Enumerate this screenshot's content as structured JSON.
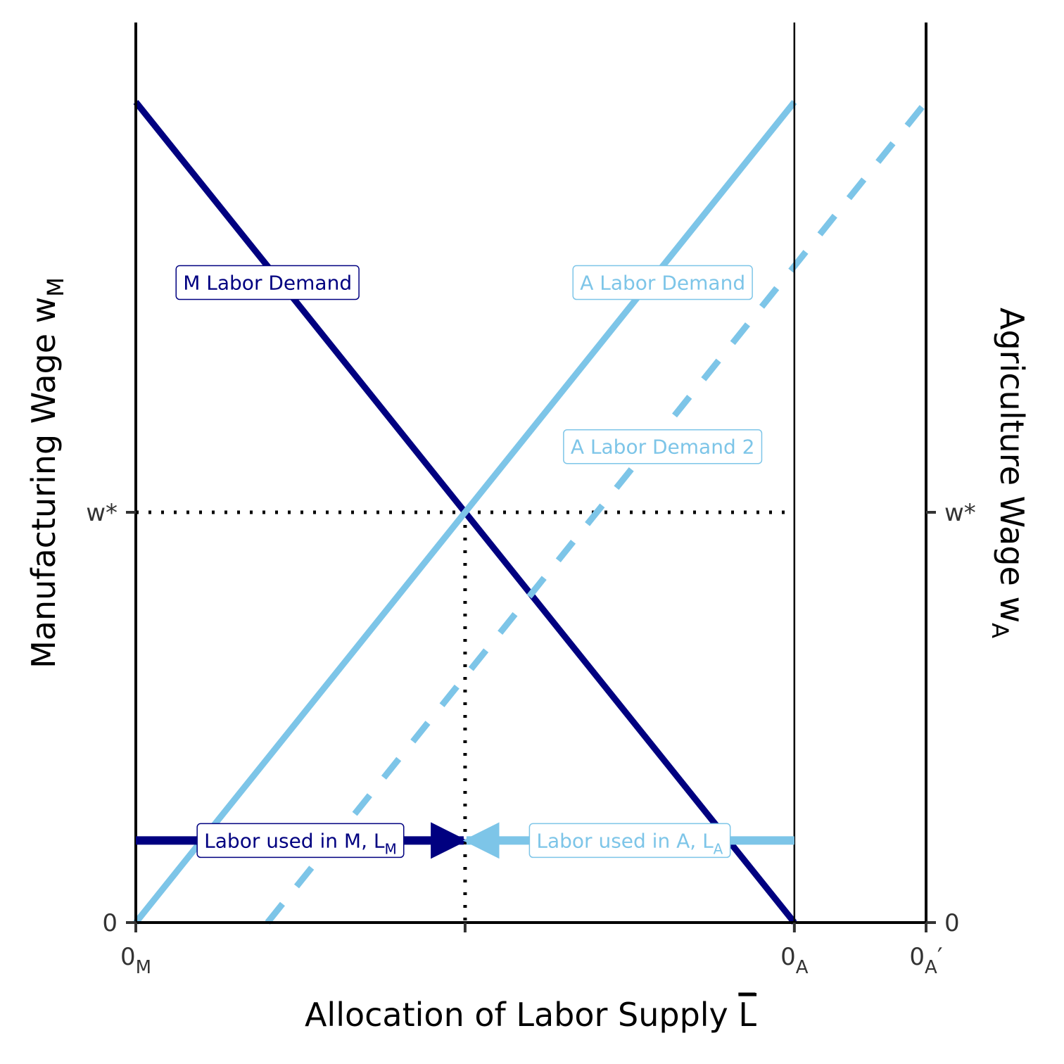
{
  "colors": {
    "manufacturing": "#000080",
    "agriculture": "#7DC5E8",
    "axis": "#000000",
    "tick_text": "#333333"
  },
  "chart_data": {
    "type": "line",
    "title": "",
    "xlabel": "Allocation of Labor Supply L",
    "xlabel_overline_char": "L",
    "ylabel_left": {
      "text": "Manufacturing Wage w",
      "sub": "M"
    },
    "ylabel_right": {
      "text": "Agriculture Wage w",
      "sub": "A"
    },
    "xlim": [
      0,
      12
    ],
    "ylim": [
      0,
      12
    ],
    "x_ticks": [
      {
        "x": 0,
        "label": "0",
        "sub": "M",
        "suffix": ""
      },
      {
        "x": 5,
        "label": "",
        "sub": "",
        "suffix": ""
      },
      {
        "x": 10,
        "label": "0",
        "sub": "A",
        "suffix": ""
      },
      {
        "x": 12,
        "label": "0",
        "sub": "A",
        "suffix": "′"
      }
    ],
    "y_ticks_left": [
      {
        "y": 0,
        "label": "0"
      },
      {
        "y": 6.25,
        "label": "w*"
      }
    ],
    "y_ticks_right": [
      {
        "y": 0,
        "label": "0"
      },
      {
        "y": 6.25,
        "label": "w*"
      }
    ],
    "series": [
      {
        "key": "m_demand",
        "style": "solid",
        "color_key": "manufacturing",
        "x": [
          0,
          10
        ],
        "y": [
          12.5,
          0
        ]
      },
      {
        "key": "a_demand",
        "style": "solid",
        "color_key": "agriculture",
        "x": [
          0,
          10
        ],
        "y": [
          0,
          12.5
        ]
      },
      {
        "key": "a_demand_2",
        "style": "dashed",
        "color_key": "agriculture",
        "x": [
          2,
          12
        ],
        "y": [
          0,
          12.5
        ]
      }
    ],
    "vertical_lines": [
      {
        "x": 10,
        "style": "thin"
      }
    ],
    "equilibrium": {
      "x": 5,
      "y": 6.25
    },
    "arrows": [
      {
        "key": "labor_m",
        "color_key": "manufacturing",
        "from_x": 0,
        "to_x": 5,
        "y": 1.25
      },
      {
        "key": "labor_a",
        "color_key": "agriculture",
        "from_x": 10,
        "to_x": 5,
        "y": 1.25
      }
    ],
    "labels": [
      {
        "key": "m_label",
        "text": "M Labor Demand",
        "sub": "",
        "color_key": "manufacturing",
        "x": 2,
        "y": 9.75
      },
      {
        "key": "a_label",
        "text": "A Labor Demand",
        "sub": "",
        "color_key": "agriculture",
        "x": 8,
        "y": 9.75
      },
      {
        "key": "a2_label",
        "text": "A Labor Demand 2",
        "sub": "",
        "color_key": "agriculture",
        "x": 8,
        "y": 7.25
      },
      {
        "key": "lm_label",
        "text": "Labor used in M, L",
        "sub": "M",
        "color_key": "manufacturing",
        "x": 2.5,
        "y": 1.25
      },
      {
        "key": "la_label",
        "text": "Labor used in A, L",
        "sub": "A",
        "color_key": "agriculture",
        "x": 7.5,
        "y": 1.25
      }
    ]
  }
}
